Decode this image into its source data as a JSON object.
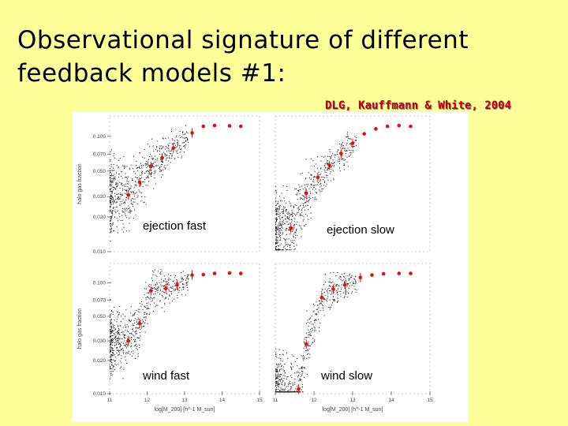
{
  "slide": {
    "title_line1": "Observational signature of different",
    "title_line2": "feedback models #1:",
    "citation": "DLG, Kauffmann & White, 2004"
  },
  "chart_data": {
    "type": "scatter",
    "ylabel": "halo gas fraction",
    "xlabel": "log[M_200] [h^-1 M_sun]",
    "x_ticks": [
      "11",
      "12",
      "13",
      "14",
      "15"
    ],
    "y_ticks": [
      "0.100",
      "0.070",
      "0.050",
      "0.030",
      "0.020",
      "0.010"
    ],
    "y_tick_values": [
      0.1,
      0.07,
      0.05,
      0.03,
      0.02,
      0.01
    ],
    "y_log": true,
    "xlim": [
      11,
      15
    ],
    "ylim": [
      0.01,
      0.15
    ],
    "panels": [
      {
        "label": "ejection fast",
        "means": [
          [
            11.5,
            0.031
          ],
          [
            11.8,
            0.04
          ],
          [
            12.1,
            0.055
          ],
          [
            12.4,
            0.065
          ],
          [
            12.7,
            0.079
          ],
          [
            13.2,
            0.107
          ],
          [
            13.5,
            0.122
          ],
          [
            13.8,
            0.124
          ],
          [
            14.2,
            0.123
          ],
          [
            14.5,
            0.122
          ]
        ]
      },
      {
        "label": "ejection slow",
        "means": [
          [
            11.4,
            0.016
          ],
          [
            11.8,
            0.032
          ],
          [
            12.1,
            0.044
          ],
          [
            12.4,
            0.056
          ],
          [
            12.7,
            0.071
          ],
          [
            13.0,
            0.087
          ],
          [
            13.3,
            0.105
          ],
          [
            13.6,
            0.116
          ],
          [
            13.9,
            0.122
          ],
          [
            14.2,
            0.124
          ],
          [
            14.5,
            0.122
          ]
        ]
      },
      {
        "label": "wind fast",
        "means": [
          [
            11.5,
            0.03
          ],
          [
            11.8,
            0.043
          ],
          [
            12.1,
            0.085
          ],
          [
            12.5,
            0.089
          ],
          [
            12.8,
            0.096
          ],
          [
            13.2,
            0.118
          ],
          [
            13.5,
            0.119
          ],
          [
            13.8,
            0.122
          ],
          [
            14.2,
            0.123
          ],
          [
            14.5,
            0.122
          ]
        ]
      },
      {
        "label": "wind slow",
        "means": [
          [
            11.6,
            0.011
          ],
          [
            11.8,
            0.028
          ],
          [
            12.2,
            0.074
          ],
          [
            12.5,
            0.088
          ],
          [
            12.8,
            0.096
          ],
          [
            13.2,
            0.112
          ],
          [
            13.5,
            0.118
          ],
          [
            13.8,
            0.121
          ],
          [
            14.2,
            0.122
          ],
          [
            14.5,
            0.122
          ]
        ]
      }
    ]
  },
  "colors": {
    "background": "#ffff99",
    "citation": "#c00000",
    "mean_points": "#dd1111",
    "particles": "#222222"
  }
}
